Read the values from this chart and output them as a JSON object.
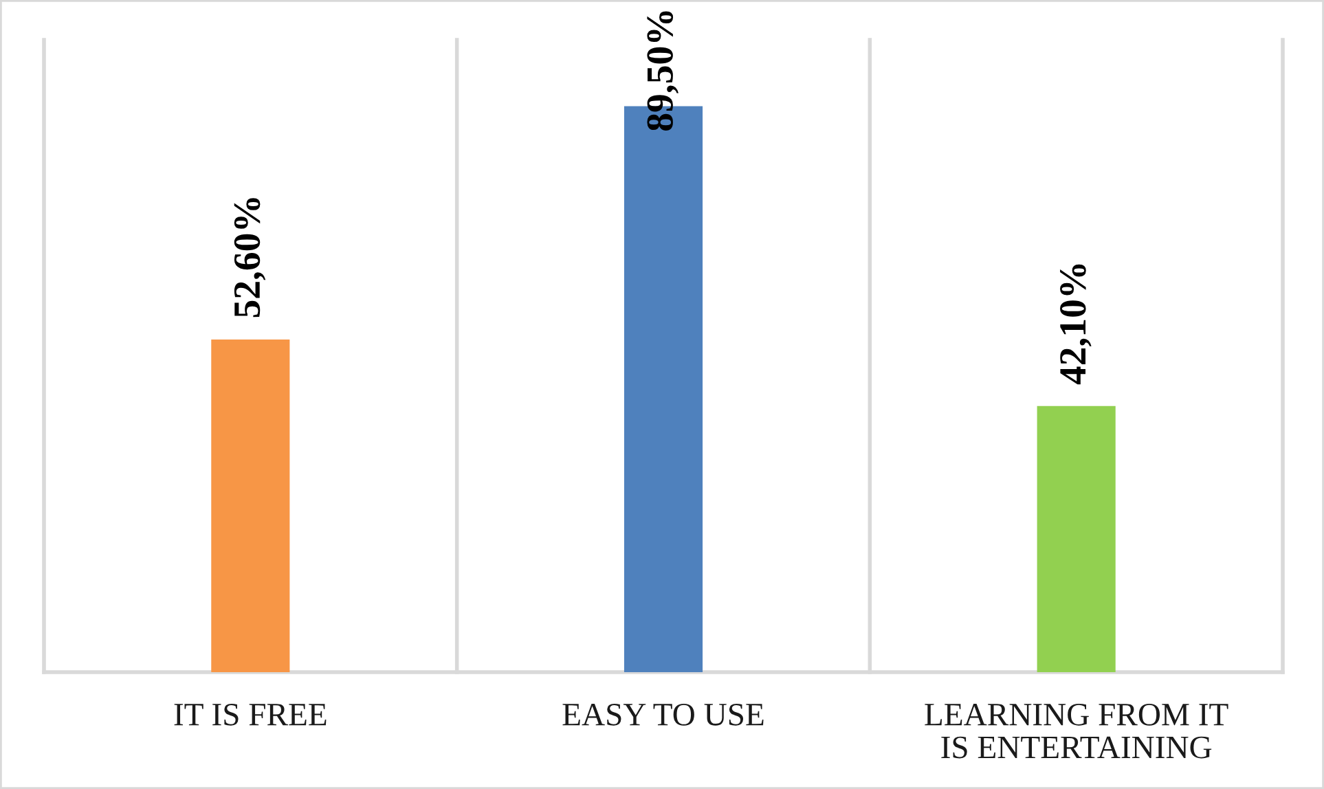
{
  "chart_data": {
    "type": "bar",
    "categories": [
      "IT IS FREE",
      "EASY TO USE",
      "LEARNING FROM IT\nIS ENTERTAINING"
    ],
    "values": [
      52.6,
      89.5,
      42.1
    ],
    "colors": [
      "#f79646",
      "#4f81bd",
      "#92d050"
    ],
    "value_labels": [
      "52,60%",
      "89,50%",
      "42,10%"
    ],
    "ylim": [
      0,
      100
    ],
    "tick_labels": "x",
    "grid": "x"
  }
}
